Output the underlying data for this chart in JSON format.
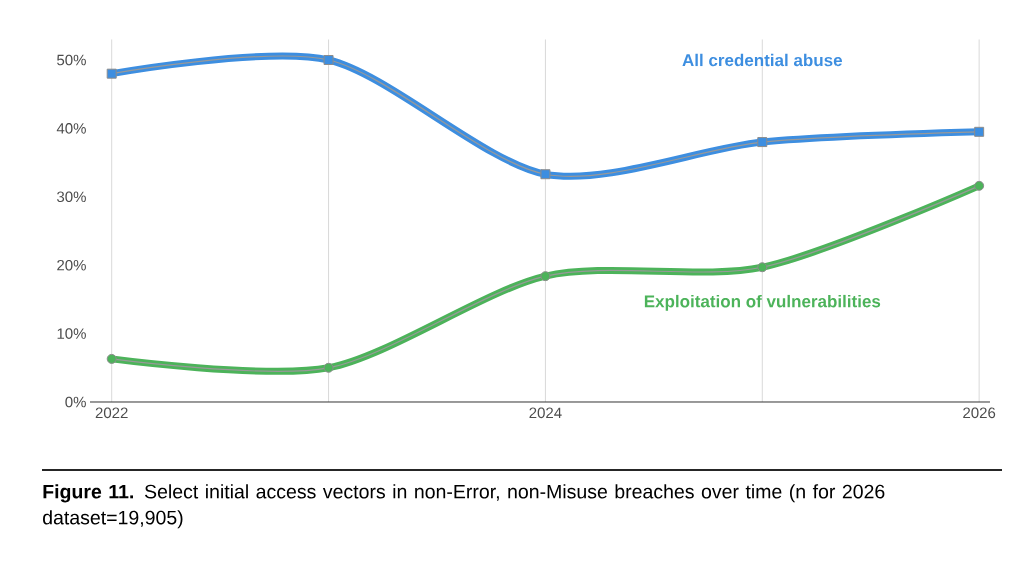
{
  "chart_data": {
    "type": "line",
    "x": [
      2022,
      2023,
      2024,
      2025,
      2026
    ],
    "xlim": [
      2021.9,
      2026.05
    ],
    "xticks": [
      2022,
      {
        "value": 2023,
        "label": null
      },
      2024,
      {
        "value": 2025,
        "label": null
      },
      2026
    ],
    "ylim": [
      0,
      53
    ],
    "yticks": [
      {
        "value": 0,
        "label": "0%"
      },
      {
        "value": 10,
        "label": "10%"
      },
      {
        "value": 20,
        "label": "20%"
      },
      {
        "value": 30,
        "label": "30%"
      },
      {
        "value": 40,
        "label": "40%"
      },
      {
        "value": 50,
        "label": "50%"
      }
    ],
    "grid": "x",
    "series": [
      {
        "name": "All credential abuse",
        "color": "#3d8ee0",
        "marker": "square",
        "values": [
          48,
          50,
          33.3,
          38,
          39.5
        ]
      },
      {
        "name": "Exploitation of vulnerabilities",
        "color": "#4cb35a",
        "marker": "circle",
        "values": [
          6.3,
          5,
          18.4,
          19.7,
          31.6
        ]
      }
    ],
    "annotations": [
      "**Figure 11.** Select initial access vectors in non-Error, non-Misuse breaches over time (n for 2026 dataset=19,905)"
    ]
  }
}
